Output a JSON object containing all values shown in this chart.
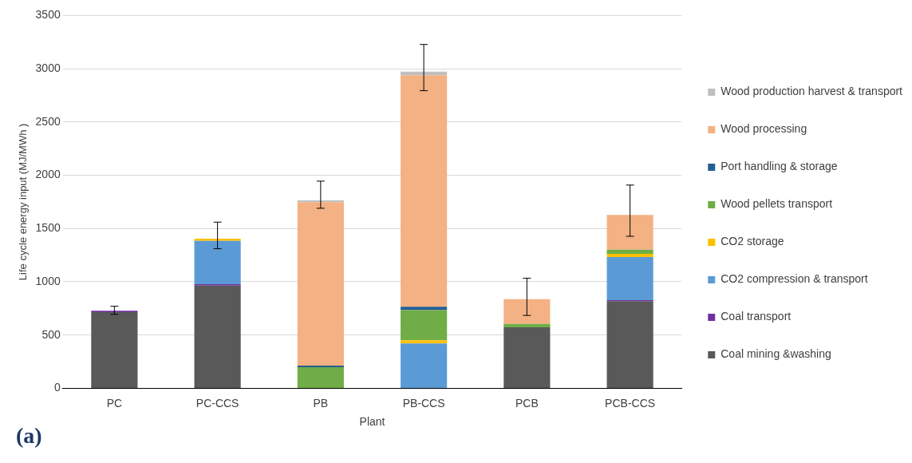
{
  "chart_data": {
    "type": "bar",
    "stacked": true,
    "xlabel": "Plant",
    "ylabel": "Life cycle energy input (MJ/MWh )",
    "categories": [
      "PC",
      "PC-CCS",
      "PB",
      "PB-CCS",
      "PCB",
      "PCB-CCS"
    ],
    "series": [
      {
        "name": "Coal mining &washing",
        "color": "#595959",
        "values": [
          715,
          965,
          0,
          0,
          573,
          818
        ]
      },
      {
        "name": "Coal transport",
        "color": "#7030a0",
        "values": [
          13,
          12,
          0,
          0,
          0,
          10
        ]
      },
      {
        "name": "CO2 compression & transport",
        "color": "#5b9bd5",
        "values": [
          0,
          407,
          0,
          420,
          0,
          405
        ]
      },
      {
        "name": "CO2 storage",
        "color": "#ffc000",
        "values": [
          0,
          20,
          0,
          30,
          0,
          29
        ]
      },
      {
        "name": "Wood pellets transport",
        "color": "#70ad47",
        "values": [
          0,
          0,
          197,
          283,
          32,
          39
        ]
      },
      {
        "name": "Port handling & storage",
        "color": "#255e91",
        "values": [
          0,
          0,
          16,
          32,
          0,
          0
        ]
      },
      {
        "name": "Wood processing",
        "color": "#f4b183",
        "values": [
          0,
          0,
          1535,
          2174,
          231,
          326
        ]
      },
      {
        "name": "Wood production harvest & transport",
        "color": "#bfbfbf",
        "values": [
          0,
          0,
          16,
          34,
          0,
          0
        ],
        "errors": [
          [
            694,
            770
          ],
          [
            1310,
            1560
          ],
          [
            1690,
            1945
          ],
          [
            2794,
            3228
          ],
          [
            684,
            1033
          ],
          [
            1427,
            1908
          ]
        ]
      }
    ],
    "ylim": [
      0,
      3500
    ],
    "yticks": [
      0,
      500,
      1000,
      1500,
      2000,
      2500,
      3000,
      3500
    ],
    "grid": "y",
    "legend": "right",
    "annotations": [
      "(a)"
    ]
  }
}
